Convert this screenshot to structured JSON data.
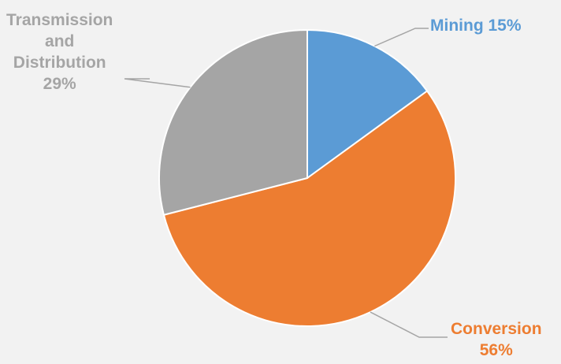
{
  "chart_data": {
    "type": "pie",
    "start_angle_deg": 0,
    "direction": "clockwise",
    "legend": "none",
    "slices": [
      {
        "name": "Mining",
        "value": 15,
        "color": "#5b9bd5",
        "label_text": "Mining 15%",
        "label_lines": [
          "Mining 15%"
        ]
      },
      {
        "name": "Conversion",
        "value": 56,
        "color": "#ed7d31",
        "label_text": "Conversion 56%",
        "label_lines": [
          "Conversion",
          "56%"
        ]
      },
      {
        "name": "Transmission and Distribution",
        "value": 29,
        "color": "#a5a5a5",
        "label_text": "Transmission and Distribution 29%",
        "label_lines": [
          "Transmission",
          "and",
          "Distribution",
          "29%"
        ]
      }
    ]
  }
}
